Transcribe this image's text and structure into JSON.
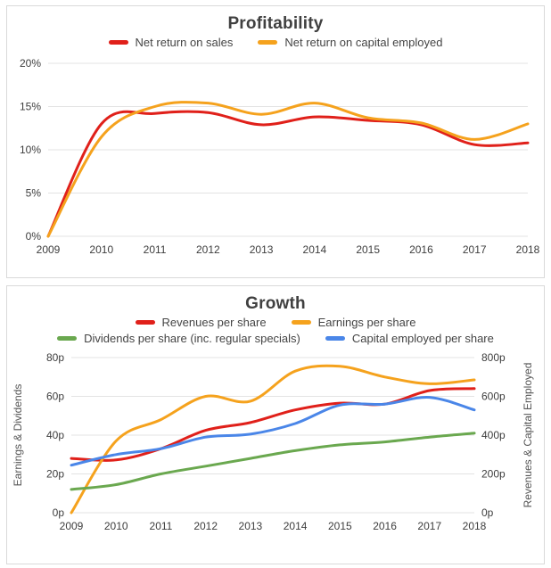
{
  "chart_data": [
    {
      "type": "line",
      "title": "Profitability",
      "xlabel": "",
      "ylabel": "",
      "x": [
        "2009",
        "2010",
        "2011",
        "2012",
        "2013",
        "2014",
        "2015",
        "2016",
        "2017",
        "2018"
      ],
      "ylim": [
        0,
        20
      ],
      "yticks": [
        "0%",
        "5%",
        "10%",
        "15%",
        "20%"
      ],
      "grid": true,
      "legend_position": "top",
      "legend_rows": [
        [
          0,
          1
        ]
      ],
      "series": [
        {
          "name": "Net return on sales",
          "color": "#e0201a",
          "axis": "left",
          "values": [
            0,
            13.0,
            14.2,
            14.3,
            12.9,
            13.8,
            13.4,
            12.9,
            10.6,
            10.8
          ]
        },
        {
          "name": "Net return on capital employed",
          "color": "#f5a21d",
          "axis": "left",
          "values": [
            0,
            11.5,
            15.0,
            15.4,
            14.1,
            15.4,
            13.7,
            13.1,
            11.2,
            13.0
          ]
        }
      ]
    },
    {
      "type": "line",
      "title": "Growth",
      "xlabel": "",
      "ylabel_left": "Earnings & Dividends",
      "ylabel_right": "Revenues & Capital Employed",
      "x": [
        "2009",
        "2010",
        "2011",
        "2012",
        "2013",
        "2014",
        "2015",
        "2016",
        "2017",
        "2018"
      ],
      "ylim": [
        0,
        80
      ],
      "ylim_right": [
        0,
        800
      ],
      "yticks": [
        "0p",
        "20p",
        "40p",
        "60p",
        "80p"
      ],
      "yticks_right": [
        "0p",
        "200p",
        "400p",
        "600p",
        "800p"
      ],
      "grid": true,
      "legend_position": "top",
      "legend_rows": [
        [
          0,
          1
        ],
        [
          2,
          3
        ]
      ],
      "series": [
        {
          "name": "Revenues per share",
          "color": "#e0201a",
          "axis": "right",
          "values": [
            280,
            272,
            330,
            425,
            465,
            530,
            565,
            560,
            630,
            640
          ]
        },
        {
          "name": "Earnings per share",
          "color": "#f5a21d",
          "axis": "left",
          "values": [
            0,
            37,
            48,
            60,
            57.5,
            73,
            75.5,
            70,
            66.5,
            68.5
          ]
        },
        {
          "name": "Dividends per share (inc. regular specials)",
          "color": "#6aa84f",
          "axis": "left",
          "values": [
            12,
            14.5,
            20,
            24,
            28,
            32,
            35,
            36.5,
            39,
            41
          ]
        },
        {
          "name": "Capital employed per share",
          "color": "#4a86e8",
          "axis": "right",
          "values": [
            245,
            300,
            330,
            390,
            405,
            460,
            555,
            560,
            595,
            530
          ]
        }
      ]
    }
  ]
}
